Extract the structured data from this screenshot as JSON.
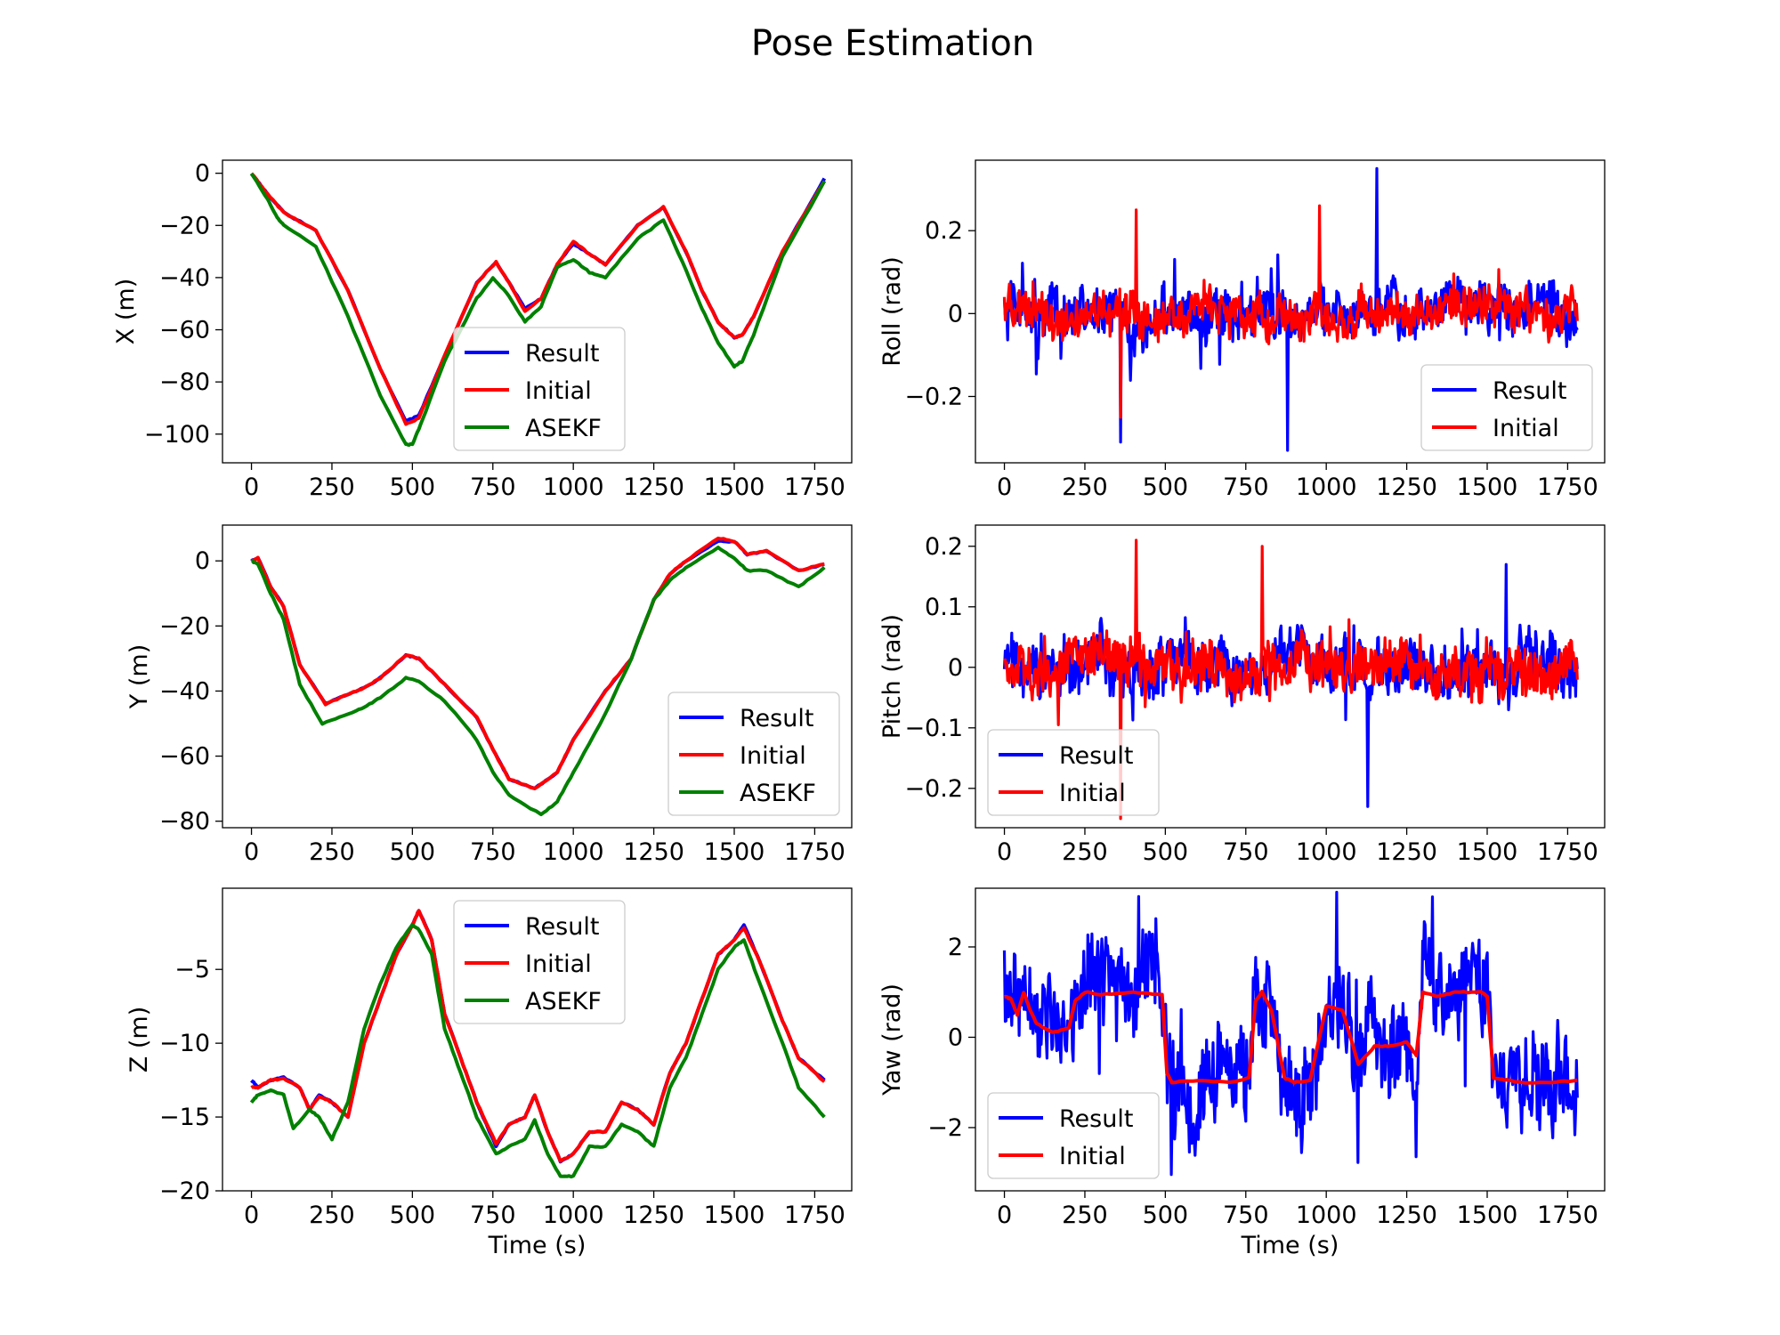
{
  "title": "Pose Estimation",
  "colors": {
    "result": "#0000ff",
    "initial": "#ff0000",
    "asekf": "#008000",
    "axes": "#000000",
    "background": "#ffffff"
  },
  "chart_data": [
    {
      "id": "x",
      "type": "line",
      "ylabel": "X (m)",
      "xlabel": "",
      "xlim": [
        -90,
        1865
      ],
      "ylim": [
        -111,
        5
      ],
      "xticks": [
        0,
        250,
        500,
        750,
        1000,
        1250,
        1500,
        1750
      ],
      "yticks": [
        0,
        -20,
        -40,
        -60,
        -80,
        -100
      ],
      "grid": false,
      "legend_position": "lower-center",
      "series": [
        {
          "name": "Result",
          "color": "#0000ff",
          "x": [
            0,
            50,
            100,
            200,
            300,
            400,
            480,
            520,
            600,
            700,
            760,
            800,
            850,
            900,
            950,
            1000,
            1050,
            1100,
            1200,
            1280,
            1350,
            1400,
            1450,
            1500,
            1525,
            1560,
            1650,
            1780
          ],
          "y": [
            0,
            -8,
            -15,
            -22,
            -45,
            -75,
            -95,
            -93,
            -70,
            -42,
            -34,
            -42,
            -52,
            -48,
            -35,
            -27,
            -31,
            -35,
            -20,
            -13,
            -30,
            -45,
            -57,
            -63,
            -62,
            -55,
            -30,
            -2
          ]
        },
        {
          "name": "Initial",
          "color": "#ff0000",
          "x": [
            0,
            50,
            100,
            200,
            300,
            400,
            480,
            520,
            600,
            700,
            760,
            800,
            850,
            900,
            950,
            1000,
            1050,
            1100,
            1200,
            1280,
            1350,
            1400,
            1450,
            1500,
            1525,
            1560,
            1650,
            1780
          ],
          "y": [
            0,
            -8,
            -15,
            -22,
            -45,
            -75,
            -96,
            -94,
            -70,
            -42,
            -34,
            -42,
            -53,
            -48,
            -35,
            -26,
            -31,
            -35,
            -20,
            -13,
            -30,
            -45,
            -57,
            -63,
            -62,
            -55,
            -30,
            -3
          ]
        },
        {
          "name": "ASEKF",
          "color": "#008000",
          "x": [
            0,
            50,
            80,
            100,
            200,
            300,
            400,
            480,
            500,
            530,
            600,
            700,
            750,
            800,
            850,
            900,
            950,
            1000,
            1050,
            1100,
            1200,
            1280,
            1350,
            1400,
            1450,
            1500,
            1525,
            1560,
            1650,
            1780
          ],
          "y": [
            0,
            -10,
            -17,
            -20,
            -28,
            -55,
            -85,
            -104,
            -104,
            -95,
            -72,
            -48,
            -40,
            -47,
            -57,
            -51,
            -36,
            -33,
            -38,
            -40,
            -25,
            -18,
            -37,
            -52,
            -65,
            -74,
            -72,
            -62,
            -32,
            -3
          ]
        }
      ]
    },
    {
      "id": "roll",
      "type": "line",
      "ylabel": "Roll (rad)",
      "xlabel": "",
      "xlim": [
        -90,
        1865
      ],
      "ylim": [
        -0.36,
        0.37
      ],
      "xticks": [
        0,
        250,
        500,
        750,
        1000,
        1250,
        1500,
        1750
      ],
      "yticks": [
        0.2,
        0.0,
        -0.2
      ],
      "grid": false,
      "legend_position": "lower-right",
      "series": [
        {
          "name": "Result",
          "color": "#0000ff",
          "x_range": [
            0,
            1780
          ],
          "amplitude": 0.09,
          "peaks": [
            [
              1158,
              0.35
            ],
            [
              880,
              -0.33
            ],
            [
              360,
              -0.31
            ]
          ]
        },
        {
          "name": "Initial",
          "color": "#ff0000",
          "x_range": [
            0,
            1780
          ],
          "amplitude": 0.07,
          "peaks": [
            [
              410,
              0.25
            ],
            [
              980,
              0.26
            ],
            [
              360,
              -0.25
            ]
          ]
        }
      ]
    },
    {
      "id": "y",
      "type": "line",
      "ylabel": "Y (m)",
      "xlabel": "",
      "xlim": [
        -90,
        1865
      ],
      "ylim": [
        -82,
        11
      ],
      "xticks": [
        0,
        250,
        500,
        750,
        1000,
        1250,
        1500,
        1750
      ],
      "yticks": [
        0,
        -20,
        -40,
        -60,
        -80
      ],
      "grid": false,
      "legend_position": "lower-right",
      "series": [
        {
          "name": "Result",
          "color": "#0000ff",
          "x": [
            0,
            20,
            60,
            100,
            150,
            230,
            300,
            350,
            400,
            480,
            520,
            600,
            700,
            750,
            800,
            880,
            950,
            1000,
            1100,
            1180,
            1250,
            1300,
            1350,
            1450,
            1500,
            1540,
            1600,
            1700,
            1780
          ],
          "y": [
            0,
            1,
            -8,
            -14,
            -32,
            -44,
            -41,
            -39,
            -36,
            -29,
            -30,
            -38,
            -48,
            -58,
            -67,
            -70,
            -65,
            -55,
            -40,
            -30,
            -12,
            -4,
            0,
            6,
            6,
            2,
            3,
            -3,
            -1
          ]
        },
        {
          "name": "Initial",
          "color": "#ff0000",
          "x": [
            0,
            20,
            60,
            100,
            150,
            230,
            300,
            350,
            400,
            480,
            520,
            600,
            700,
            750,
            800,
            880,
            950,
            1000,
            1100,
            1180,
            1250,
            1300,
            1350,
            1450,
            1500,
            1540,
            1600,
            1700,
            1780
          ],
          "y": [
            0,
            1,
            -8,
            -14,
            -32,
            -44,
            -41,
            -39,
            -36,
            -29,
            -30,
            -38,
            -48,
            -58,
            -67,
            -70,
            -65,
            -55,
            -40,
            -30,
            -12,
            -4,
            0,
            7,
            6,
            2,
            3,
            -3,
            -1
          ]
        },
        {
          "name": "ASEKF",
          "color": "#008000",
          "x": [
            0,
            20,
            60,
            100,
            150,
            220,
            300,
            350,
            400,
            480,
            520,
            600,
            700,
            750,
            800,
            900,
            950,
            1000,
            1100,
            1180,
            1250,
            1300,
            1350,
            1450,
            1500,
            1540,
            1600,
            1700,
            1780
          ],
          "y": [
            0,
            -1,
            -10,
            -18,
            -38,
            -50,
            -47,
            -45,
            -42,
            -36,
            -37,
            -43,
            -55,
            -65,
            -72,
            -78,
            -74,
            -65,
            -47,
            -30,
            -12,
            -6,
            -2,
            4,
            1,
            -3,
            -3,
            -8,
            -2
          ]
        }
      ]
    },
    {
      "id": "pitch",
      "type": "line",
      "ylabel": "Pitch (rad)",
      "xlabel": "",
      "xlim": [
        -90,
        1865
      ],
      "ylim": [
        -0.265,
        0.235
      ],
      "xticks": [
        0,
        250,
        500,
        750,
        1000,
        1250,
        1500,
        1750
      ],
      "yticks": [
        0.2,
        0.1,
        0.0,
        -0.1,
        -0.2
      ],
      "grid": false,
      "legend_position": "lower-left",
      "series": [
        {
          "name": "Result",
          "color": "#0000ff",
          "x_range": [
            0,
            1780
          ],
          "amplitude": 0.07,
          "peaks": [
            [
              1130,
              -0.23
            ],
            [
              1560,
              0.17
            ]
          ]
        },
        {
          "name": "Initial",
          "color": "#ff0000",
          "x_range": [
            0,
            1780
          ],
          "amplitude": 0.06,
          "peaks": [
            [
              410,
              0.21
            ],
            [
              360,
              -0.25
            ],
            [
              800,
              0.2
            ]
          ]
        }
      ]
    },
    {
      "id": "z",
      "type": "line",
      "ylabel": "Z (m)",
      "xlabel": "Time (s)",
      "xlim": [
        -90,
        1865
      ],
      "ylim": [
        -20,
        0.5
      ],
      "xticks": [
        0,
        250,
        500,
        750,
        1000,
        1250,
        1500,
        1750
      ],
      "yticks": [
        -5,
        -10,
        -15,
        -20
      ],
      "grid": false,
      "legend_position": "top-center",
      "series": [
        {
          "name": "Result",
          "color": "#0000ff",
          "x": [
            0,
            20,
            60,
            100,
            150,
            180,
            210,
            250,
            300,
            350,
            400,
            450,
            500,
            520,
            560,
            600,
            650,
            700,
            760,
            800,
            850,
            880,
            920,
            960,
            1000,
            1050,
            1100,
            1150,
            1200,
            1250,
            1300,
            1350,
            1400,
            1450,
            1500,
            1530,
            1580,
            1650,
            1700,
            1780
          ],
          "y": [
            -12.5,
            -13,
            -12.5,
            -12.3,
            -13,
            -14.5,
            -13.5,
            -14,
            -15,
            -10,
            -7,
            -4,
            -2,
            -1,
            -3,
            -8,
            -11,
            -14,
            -17,
            -15.5,
            -15,
            -13.5,
            -16,
            -18,
            -17.5,
            -16,
            -16,
            -14,
            -14.5,
            -15.5,
            -12,
            -10,
            -7,
            -4,
            -3,
            -2,
            -4.5,
            -8.5,
            -11,
            -12.5
          ]
        },
        {
          "name": "Initial",
          "color": "#ff0000",
          "x": [
            0,
            20,
            60,
            100,
            150,
            180,
            210,
            250,
            300,
            350,
            400,
            450,
            500,
            520,
            560,
            600,
            650,
            700,
            760,
            800,
            850,
            880,
            920,
            960,
            1000,
            1050,
            1100,
            1150,
            1200,
            1250,
            1300,
            1350,
            1400,
            1450,
            1500,
            1530,
            1580,
            1650,
            1700,
            1780
          ],
          "y": [
            -13,
            -13,
            -12.5,
            -12.4,
            -13,
            -14.5,
            -13.6,
            -14,
            -15,
            -10,
            -7,
            -4,
            -2,
            -1,
            -3,
            -8,
            -11,
            -14,
            -16.8,
            -15.5,
            -15,
            -13.5,
            -16,
            -18,
            -17.5,
            -16,
            -16,
            -14,
            -14.5,
            -15.5,
            -12,
            -10,
            -7,
            -4,
            -3,
            -2.2,
            -4.5,
            -8.5,
            -11,
            -12.6
          ]
        },
        {
          "name": "ASEKF",
          "color": "#008000",
          "x": [
            0,
            20,
            60,
            100,
            130,
            180,
            210,
            250,
            300,
            350,
            400,
            450,
            500,
            520,
            560,
            600,
            650,
            700,
            760,
            800,
            850,
            880,
            920,
            960,
            1000,
            1050,
            1100,
            1150,
            1200,
            1250,
            1300,
            1350,
            1400,
            1450,
            1500,
            1530,
            1580,
            1650,
            1700,
            1780
          ],
          "y": [
            -14,
            -13.5,
            -13.2,
            -13.5,
            -15.8,
            -14.5,
            -15,
            -16.5,
            -14,
            -9,
            -6,
            -3.5,
            -2,
            -2.3,
            -4,
            -9,
            -12,
            -15,
            -17.5,
            -17,
            -16.5,
            -15.2,
            -17.5,
            -19,
            -19,
            -17,
            -17,
            -15.5,
            -16,
            -17,
            -13,
            -11,
            -8,
            -5,
            -3.5,
            -3,
            -6,
            -10,
            -13,
            -15
          ]
        }
      ]
    },
    {
      "id": "yaw",
      "type": "line",
      "ylabel": "Yaw (rad)",
      "xlabel": "Time (s)",
      "xlim": [
        -90,
        1865
      ],
      "ylim": [
        -3.4,
        3.3
      ],
      "xticks": [
        0,
        250,
        500,
        750,
        1000,
        1250,
        1500,
        1750
      ],
      "yticks": [
        2,
        0,
        -2
      ],
      "grid": false,
      "legend_position": "lower-left",
      "series": [
        {
          "name": "Result",
          "color": "#0000ff",
          "x_range": [
            0,
            1780
          ],
          "amplitude": 1.3
        },
        {
          "name": "Initial",
          "color": "#ff0000",
          "x": [
            0,
            20,
            40,
            60,
            80,
            100,
            150,
            200,
            220,
            250,
            300,
            400,
            490,
            505,
            520,
            600,
            700,
            760,
            780,
            800,
            830,
            870,
            900,
            950,
            1000,
            1050,
            1100,
            1150,
            1200,
            1250,
            1280,
            1300,
            1350,
            1400,
            1480,
            1500,
            1520,
            1560,
            1600,
            1700,
            1780
          ],
          "y": [
            0.9,
            0.85,
            0.5,
            1.0,
            0.6,
            0.3,
            0.1,
            0.2,
            0.8,
            1.0,
            0.95,
            1.0,
            0.95,
            -0.8,
            -1.0,
            -0.95,
            -1.0,
            -0.9,
            0.8,
            1.0,
            0.6,
            -0.9,
            -1.0,
            -0.95,
            0.7,
            0.6,
            -0.6,
            -0.2,
            -0.2,
            -0.1,
            -0.4,
            1.0,
            0.9,
            1.0,
            1.0,
            0.9,
            -0.9,
            -0.95,
            -1.0,
            -1.0,
            -0.95
          ]
        }
      ]
    }
  ]
}
